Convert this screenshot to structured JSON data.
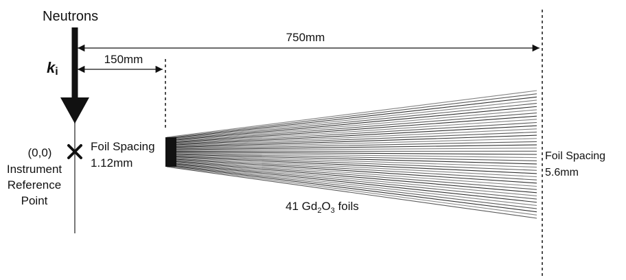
{
  "labels": {
    "neutrons": "Neutrons",
    "k_symbol": "k",
    "k_subscript": "i",
    "dist_750": "750mm",
    "dist_150": "150mm",
    "origin": "(0,0)",
    "reference_line1": "Instrument",
    "reference_line2": "Reference",
    "reference_line3": "Point",
    "foil_spacing_left_line1": "Foil Spacing",
    "foil_spacing_left_line2": "1.12mm",
    "foil_spacing_right_line1": "Foil Spacing",
    "foil_spacing_right_line2": "5.6mm",
    "foils_prefix": "41 Gd",
    "foils_sub1": "2",
    "foils_mid": "O",
    "foils_sub2": "3",
    "foils_suffix": " foils"
  },
  "foils": {
    "count": 41
  },
  "colors": {
    "line": "#111111",
    "axis": "#777777",
    "foil": "#1a1a1a"
  }
}
